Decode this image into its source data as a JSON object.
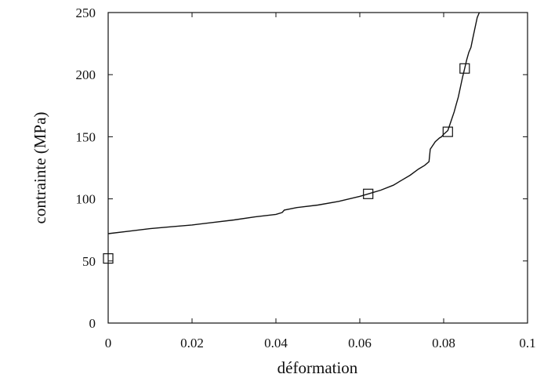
{
  "chart_data": {
    "type": "line",
    "title": "",
    "xlabel": "déformation",
    "ylabel": "contrainte (MPa)",
    "xlim": [
      0,
      0.1
    ],
    "ylim": [
      0,
      250
    ],
    "x_ticks": [
      "0",
      "0.02",
      "0.04",
      "0.06",
      "0.08",
      "0.1"
    ],
    "y_ticks": [
      "0",
      "50",
      "100",
      "150",
      "200",
      "250"
    ],
    "grid": false,
    "legend": "none",
    "series": [
      {
        "style": "solid line",
        "x": [
          0,
          0.005,
          0.01,
          0.015,
          0.02,
          0.025,
          0.03,
          0.035,
          0.04,
          0.0415,
          0.042,
          0.045,
          0.05,
          0.055,
          0.06,
          0.062,
          0.065,
          0.068,
          0.07,
          0.072,
          0.074,
          0.0755,
          0.0765,
          0.0768,
          0.078,
          0.079,
          0.0795,
          0.08,
          0.081,
          0.0815,
          0.082,
          0.0825,
          0.083,
          0.0835,
          0.084,
          0.0845,
          0.085,
          0.0855,
          0.086,
          0.0865,
          0.087,
          0.0875,
          0.088,
          0.0885
        ],
        "y": [
          72,
          74,
          76,
          77.5,
          79,
          81,
          83,
          85.5,
          87.5,
          89,
          91,
          93,
          95,
          98,
          102,
          104,
          107,
          111,
          115,
          119,
          124,
          127,
          130,
          140,
          146,
          149,
          150,
          152,
          155,
          160,
          165,
          170,
          176,
          182,
          190,
          198,
          205,
          212,
          218,
          222,
          230,
          238,
          246,
          250
        ]
      },
      {
        "style": "square markers",
        "x": [
          0,
          0.062,
          0.081,
          0.085
        ],
        "y": [
          52,
          104,
          154,
          205
        ]
      }
    ]
  }
}
